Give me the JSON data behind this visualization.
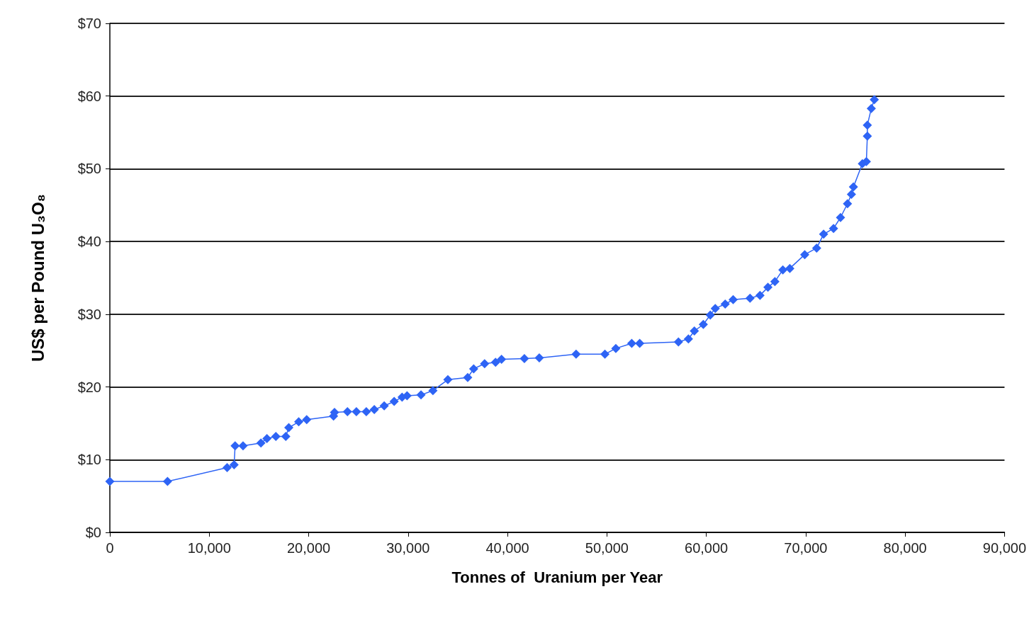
{
  "chart_data": {
    "type": "line",
    "xlabel": "Tonnes of  Uranium per Year",
    "ylabel": "US$ per Pound U₃O₈",
    "x": [
      0,
      5800,
      11800,
      12500,
      12600,
      13400,
      15200,
      15800,
      16700,
      17700,
      18000,
      19000,
      19800,
      22500,
      22600,
      23900,
      24800,
      25800,
      26600,
      27600,
      28600,
      29400,
      29900,
      31300,
      32500,
      34000,
      36000,
      36600,
      37700,
      38800,
      39400,
      41700,
      43200,
      46900,
      49800,
      50900,
      52500,
      53300,
      57200,
      58200,
      58800,
      59700,
      60400,
      60900,
      61900,
      62700,
      64400,
      65400,
      66200,
      66900,
      67700,
      68400,
      69900,
      71100,
      71800,
      72800,
      73500,
      74200,
      74600,
      74800,
      75700,
      76100,
      76200,
      76200,
      76600,
      76900
    ],
    "series": [
      {
        "color": "#2e64f5",
        "values": [
          7.0,
          7.0,
          8.9,
          9.3,
          11.9,
          11.9,
          12.3,
          12.9,
          13.2,
          13.2,
          14.4,
          15.2,
          15.5,
          16.0,
          16.5,
          16.6,
          16.6,
          16.6,
          16.9,
          17.4,
          18.0,
          18.6,
          18.8,
          18.9,
          19.5,
          21.0,
          21.3,
          22.5,
          23.2,
          23.4,
          23.8,
          23.9,
          24.0,
          24.5,
          24.5,
          25.3,
          26.0,
          26.0,
          26.2,
          26.6,
          27.7,
          28.6,
          29.9,
          30.8,
          31.4,
          32.0,
          32.2,
          32.6,
          33.7,
          34.5,
          36.1,
          36.3,
          38.2,
          39.1,
          41.0,
          41.8,
          43.3,
          45.2,
          46.5,
          47.5,
          50.7,
          51.0,
          54.5,
          56.0,
          58.3,
          59.5
        ]
      }
    ],
    "xlim": [
      0,
      90000
    ],
    "xticks": [
      {
        "value": 0,
        "label": "0"
      },
      {
        "value": 10000,
        "label": "10,000"
      },
      {
        "value": 20000,
        "label": "20,000"
      },
      {
        "value": 30000,
        "label": "30,000"
      },
      {
        "value": 40000,
        "label": "40,000"
      },
      {
        "value": 50000,
        "label": "50,000"
      },
      {
        "value": 60000,
        "label": "60,000"
      },
      {
        "value": 70000,
        "label": "70,000"
      },
      {
        "value": 80000,
        "label": "80,000"
      },
      {
        "value": 90000,
        "label": "90,000"
      }
    ],
    "ylim": [
      0,
      70
    ],
    "yticks": [
      {
        "value": 0,
        "label": "$0"
      },
      {
        "value": 10,
        "label": "$10"
      },
      {
        "value": 20,
        "label": "$20"
      },
      {
        "value": 30,
        "label": "$30"
      },
      {
        "value": 40,
        "label": "$40"
      },
      {
        "value": 50,
        "label": "$50"
      },
      {
        "value": 60,
        "label": "$60"
      },
      {
        "value": 70,
        "label": "$70"
      }
    ],
    "grid": "y",
    "marker": "diamond",
    "line_style": "solid"
  }
}
